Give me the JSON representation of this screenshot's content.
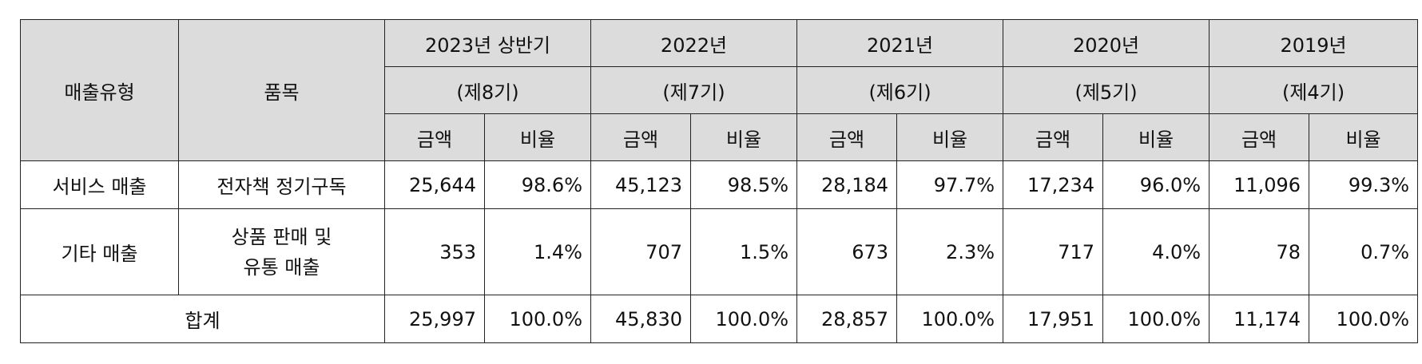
{
  "header": {
    "sales_type": "매출유형",
    "item": "품목",
    "amount_label": "금액",
    "ratio_label": "비율",
    "periods": [
      {
        "year": "2023년 상반기",
        "term": "(제8기)"
      },
      {
        "year": "2022년",
        "term": "(제7기)"
      },
      {
        "year": "2021년",
        "term": "(제6기)"
      },
      {
        "year": "2020년",
        "term": "(제5기)"
      },
      {
        "year": "2019년",
        "term": "(제4기)"
      }
    ]
  },
  "rows": [
    {
      "type": "서비스 매출",
      "item_lines": [
        "전자책 정기구독"
      ],
      "values": [
        {
          "amount": "25,644",
          "ratio": "98.6%"
        },
        {
          "amount": "45,123",
          "ratio": "98.5%"
        },
        {
          "amount": "28,184",
          "ratio": "97.7%"
        },
        {
          "amount": "17,234",
          "ratio": "96.0%"
        },
        {
          "amount": "11,096",
          "ratio": "99.3%"
        }
      ]
    },
    {
      "type": "기타 매출",
      "item_lines": [
        "상품 판매 및",
        "유통 매출"
      ],
      "values": [
        {
          "amount": "353",
          "ratio": "1.4%"
        },
        {
          "amount": "707",
          "ratio": "1.5%"
        },
        {
          "amount": "673",
          "ratio": "2.3%"
        },
        {
          "amount": "717",
          "ratio": "4.0%"
        },
        {
          "amount": "78",
          "ratio": "0.7%"
        }
      ]
    }
  ],
  "total": {
    "label": "합계",
    "values": [
      {
        "amount": "25,997",
        "ratio": "100.0%"
      },
      {
        "amount": "45,830",
        "ratio": "100.0%"
      },
      {
        "amount": "28,857",
        "ratio": "100.0%"
      },
      {
        "amount": "17,951",
        "ratio": "100.0%"
      },
      {
        "amount": "11,174",
        "ratio": "100.0%"
      }
    ]
  }
}
